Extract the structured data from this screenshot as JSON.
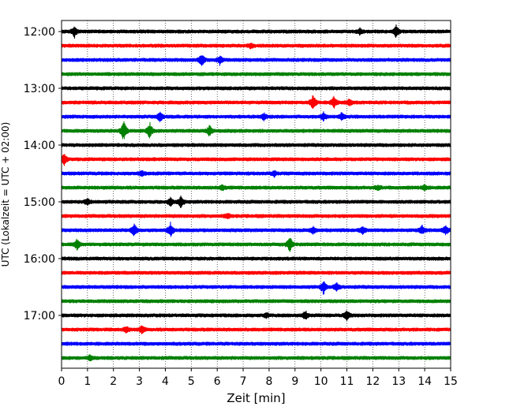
{
  "chart_data": {
    "type": "line",
    "title": "",
    "xlabel": "Zeit  [min]",
    "ylabel": "UTC (Lokalzeit = UTC + 02:00)",
    "xlim": [
      0,
      15
    ],
    "xticks": [
      0,
      1,
      2,
      3,
      4,
      5,
      6,
      7,
      8,
      9,
      10,
      11,
      12,
      13,
      14,
      15
    ],
    "xtick_labels": [
      "0",
      "1",
      "2",
      "3",
      "4",
      "5",
      "6",
      "7",
      "8",
      "9",
      "10",
      "11",
      "12",
      "13",
      "14",
      "15"
    ],
    "ytick_labels": [
      "12:00",
      "13:00",
      "14:00",
      "15:00",
      "16:00",
      "17:00"
    ],
    "ytick_trace_index": [
      0,
      4,
      8,
      12,
      16,
      20
    ],
    "grid": "vertical dotted at each minute",
    "colors": [
      "#000000",
      "#ff0000",
      "#0000ff",
      "#008000"
    ],
    "traces": [
      {
        "start": "12:00",
        "color": "#000000",
        "events": [
          [
            0.5,
            7
          ],
          [
            11.5,
            4
          ],
          [
            12.9,
            7
          ]
        ]
      },
      {
        "start": "12:15",
        "color": "#ff0000",
        "events": [
          [
            7.3,
            3
          ]
        ]
      },
      {
        "start": "12:30",
        "color": "#0000ff",
        "events": [
          [
            5.4,
            8
          ],
          [
            6.1,
            5
          ]
        ]
      },
      {
        "start": "12:45",
        "color": "#008000",
        "events": []
      },
      {
        "start": "13:00",
        "color": "#000000",
        "events": []
      },
      {
        "start": "13:15",
        "color": "#ff0000",
        "events": [
          [
            9.7,
            9
          ],
          [
            10.5,
            7
          ],
          [
            11.1,
            4
          ]
        ]
      },
      {
        "start": "13:30",
        "color": "#0000ff",
        "events": [
          [
            3.8,
            6
          ],
          [
            7.8,
            4
          ],
          [
            10.1,
            5
          ],
          [
            10.8,
            4
          ]
        ]
      },
      {
        "start": "13:45",
        "color": "#008000",
        "events": [
          [
            2.4,
            14
          ],
          [
            3.4,
            9
          ],
          [
            5.7,
            6
          ]
        ]
      },
      {
        "start": "14:00",
        "color": "#000000",
        "events": []
      },
      {
        "start": "14:15",
        "color": "#ff0000",
        "events": [
          [
            0.1,
            7
          ]
        ]
      },
      {
        "start": "14:30",
        "color": "#0000ff",
        "events": [
          [
            3.1,
            3
          ],
          [
            8.2,
            3
          ]
        ]
      },
      {
        "start": "14:45",
        "color": "#008000",
        "events": [
          [
            6.2,
            3
          ],
          [
            12.2,
            3
          ],
          [
            14,
            3
          ]
        ]
      },
      {
        "start": "15:00",
        "color": "#000000",
        "events": [
          [
            1,
            4
          ],
          [
            4.2,
            5
          ],
          [
            4.6,
            7
          ]
        ]
      },
      {
        "start": "15:15",
        "color": "#ff0000",
        "events": [
          [
            6.4,
            3
          ]
        ]
      },
      {
        "start": "15:30",
        "color": "#0000ff",
        "events": [
          [
            2.8,
            8
          ],
          [
            4.2,
            9
          ],
          [
            9.7,
            5
          ],
          [
            11.6,
            5
          ],
          [
            13.9,
            5
          ],
          [
            14.8,
            6
          ]
        ]
      },
      {
        "start": "15:45",
        "color": "#008000",
        "events": [
          [
            0.6,
            6
          ],
          [
            8.8,
            10
          ]
        ]
      },
      {
        "start": "16:00",
        "color": "#000000",
        "events": []
      },
      {
        "start": "16:15",
        "color": "#ff0000",
        "events": []
      },
      {
        "start": "16:30",
        "color": "#0000ff",
        "events": [
          [
            10.1,
            8
          ],
          [
            10.6,
            5
          ]
        ]
      },
      {
        "start": "16:45",
        "color": "#008000",
        "events": []
      },
      {
        "start": "17:00",
        "color": "#000000",
        "events": [
          [
            7.9,
            3
          ],
          [
            9.4,
            5
          ],
          [
            11,
            6
          ]
        ]
      },
      {
        "start": "17:15",
        "color": "#ff0000",
        "events": [
          [
            2.5,
            4
          ],
          [
            3.1,
            5
          ]
        ]
      },
      {
        "start": "17:30",
        "color": "#0000ff",
        "events": []
      },
      {
        "start": "17:45",
        "color": "#008000",
        "events": [
          [
            1.1,
            3
          ]
        ]
      }
    ]
  }
}
